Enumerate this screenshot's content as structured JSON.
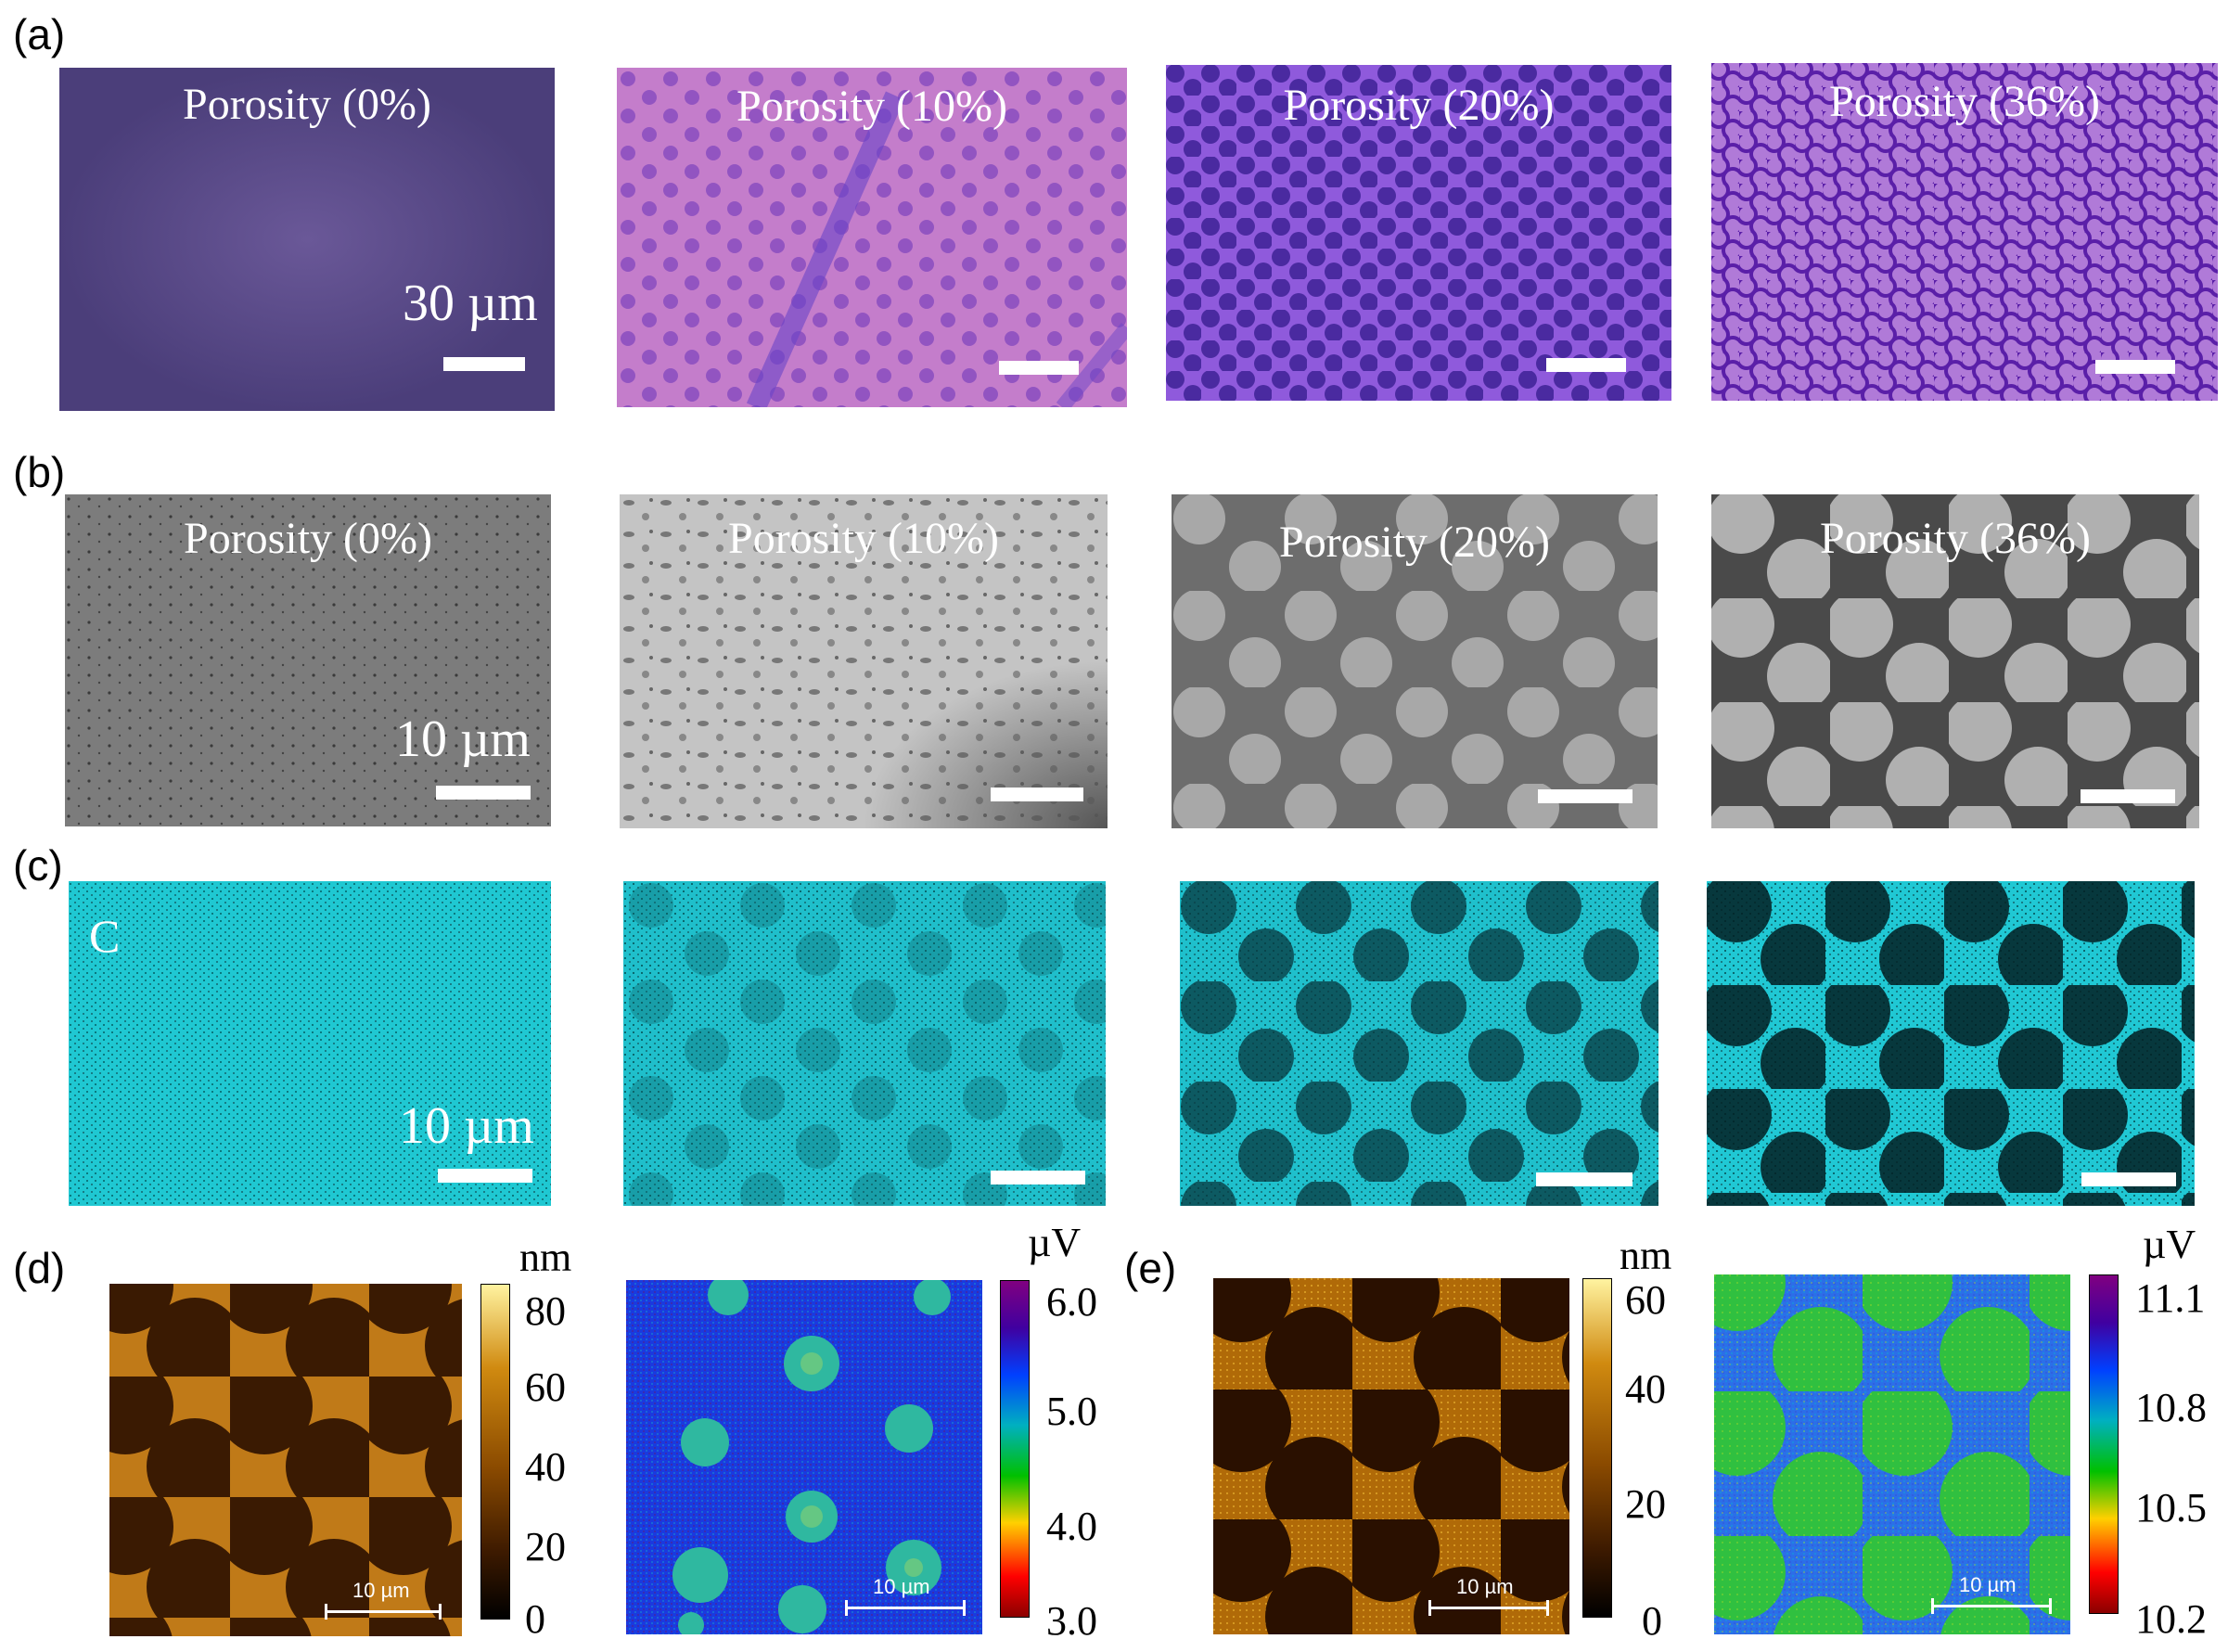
{
  "panels": {
    "a": {
      "letter": "(a)",
      "images": [
        {
          "title": "Porosity (0%)",
          "scale": "30 µm"
        },
        {
          "title": "Porosity (10%)",
          "scale": ""
        },
        {
          "title": "Porosity (20%)",
          "scale": ""
        },
        {
          "title": "Porosity (36%)",
          "scale": ""
        }
      ]
    },
    "b": {
      "letter": "(b)",
      "images": [
        {
          "title": "Porosity (0%)",
          "scale": "10 µm"
        },
        {
          "title": "Porosity (10%)",
          "scale": ""
        },
        {
          "title": "Porosity (20%)",
          "scale": ""
        },
        {
          "title": "Porosity (36%)",
          "scale": ""
        }
      ]
    },
    "c": {
      "letter": "(c)",
      "element": "C",
      "images": [
        {
          "scale": "10 µm"
        },
        {
          "scale": ""
        },
        {
          "scale": ""
        },
        {
          "scale": ""
        }
      ]
    },
    "d": {
      "letter": "(d)",
      "height_map": {
        "unit": "nm",
        "ticks": [
          "80",
          "60",
          "40",
          "20",
          "0"
        ],
        "scale": "10 µm"
      },
      "potential_map": {
        "unit": "µV",
        "ticks": [
          "6.0",
          "5.0",
          "4.0",
          "3.0"
        ],
        "scale": "10 µm"
      }
    },
    "e": {
      "letter": "(e)",
      "height_map": {
        "unit": "nm",
        "ticks": [
          "60",
          "40",
          "20",
          "0"
        ],
        "scale": "10 µm"
      },
      "potential_map": {
        "unit": "µV",
        "ticks": [
          "11.1",
          "10.8",
          "10.5",
          "10.2"
        ],
        "scale": "10 µm"
      }
    }
  },
  "colors": {
    "optical_bg": [
      "#5a4a8c",
      "#c27ac8",
      "#8b55d6",
      "#7a3fd0"
    ],
    "sem_bg": [
      "#7b7b7b",
      "#bdbdbd",
      "#6e6e6e",
      "#5a5a5a"
    ],
    "eds": "#22d3dc",
    "afm_height": [
      "#000000",
      "#3d1a00",
      "#8a4a00",
      "#d08a10",
      "#fff3a0"
    ],
    "afm_potential": [
      "#8b0000",
      "#ff0000",
      "#ffd000",
      "#00c000",
      "#00b0c0",
      "#0040ff",
      "#4000a0",
      "#800080"
    ]
  }
}
